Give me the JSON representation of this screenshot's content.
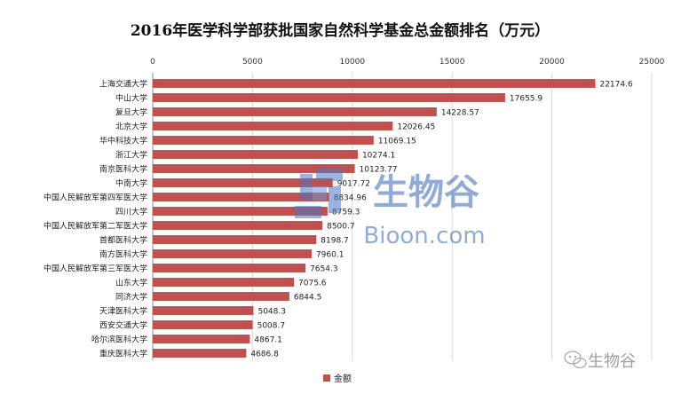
{
  "chart_data": {
    "type": "bar",
    "orientation": "horizontal",
    "title": "2016年医学科学部获批国家自然科学基金总金额排名（万元）",
    "categories": [
      "上海交通大学",
      "中山大学",
      "复旦大学",
      "北京大学",
      "华中科技大学",
      "浙江大学",
      "南京医科大学",
      "中南大学",
      "中国人民解放军第四军医大学",
      "四川大学",
      "中国人民解放军第二军医大学",
      "首都医科大学",
      "南方医科大学",
      "中国人民解放军第三军医大学",
      "山东大学",
      "同济大学",
      "天津医科大学",
      "西安交通大学",
      "哈尔滨医科大学",
      "重庆医科大学"
    ],
    "series": [
      {
        "name": "金额",
        "values": [
          22174.6,
          17655.9,
          14228.57,
          12026.45,
          11069.15,
          10274.1,
          10123.77,
          9017.72,
          8834.96,
          8759.3,
          8500.7,
          8198.7,
          7960.1,
          7654.3,
          7075.6,
          6844.5,
          5048.3,
          5008.7,
          4867.1,
          4686.8
        ],
        "labels": [
          "22174.6",
          "17655.9",
          "14228.57",
          "12026.45",
          "11069.15",
          "10274.1",
          "10123.77",
          "9017.72",
          "8834.96",
          "8759.3",
          "8500.7",
          "8198.7",
          "7960.1",
          "7654.3",
          "7075.6",
          "6844.5",
          "5048.3",
          "5008.7",
          "4867.1",
          "4686.8"
        ],
        "color": "#c0504d"
      }
    ],
    "xticks": [
      "0",
      "5000",
      "10000",
      "15000",
      "20000",
      "25000"
    ],
    "xlim": [
      0,
      25000
    ],
    "grid": true,
    "legend": "bottom-left"
  },
  "watermark": {
    "center_text_cn": "生物谷",
    "center_text_en": "Bioon.com",
    "corner_text": "生物谷",
    "color_center": "#3a66b5"
  }
}
